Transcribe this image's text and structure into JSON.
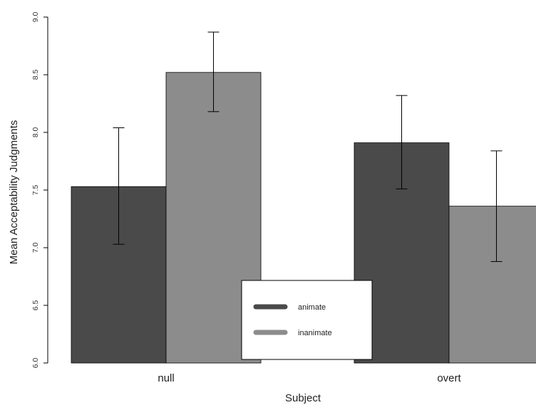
{
  "chart_data": {
    "type": "bar",
    "title": "",
    "xlabel": "Subject",
    "ylabel": "Mean Acceptability Judgments",
    "categories": [
      "null",
      "overt"
    ],
    "ylim": [
      6.0,
      9.0
    ],
    "yticks": [
      "6.0",
      "6.5",
      "7.0",
      "7.5",
      "8.0",
      "8.5",
      "9.0"
    ],
    "grid": false,
    "legend_position": "bottom-center",
    "series": [
      {
        "name": "animate",
        "color": "#4a4a4a",
        "values": [
          7.53,
          7.91
        ],
        "error_low": [
          7.03,
          7.51
        ],
        "error_high": [
          8.04,
          8.32
        ]
      },
      {
        "name": "inanimate",
        "color": "#8c8c8c",
        "values": [
          8.52,
          7.36
        ],
        "error_low": [
          8.18,
          6.88
        ],
        "error_high": [
          8.87,
          7.84
        ]
      }
    ]
  }
}
